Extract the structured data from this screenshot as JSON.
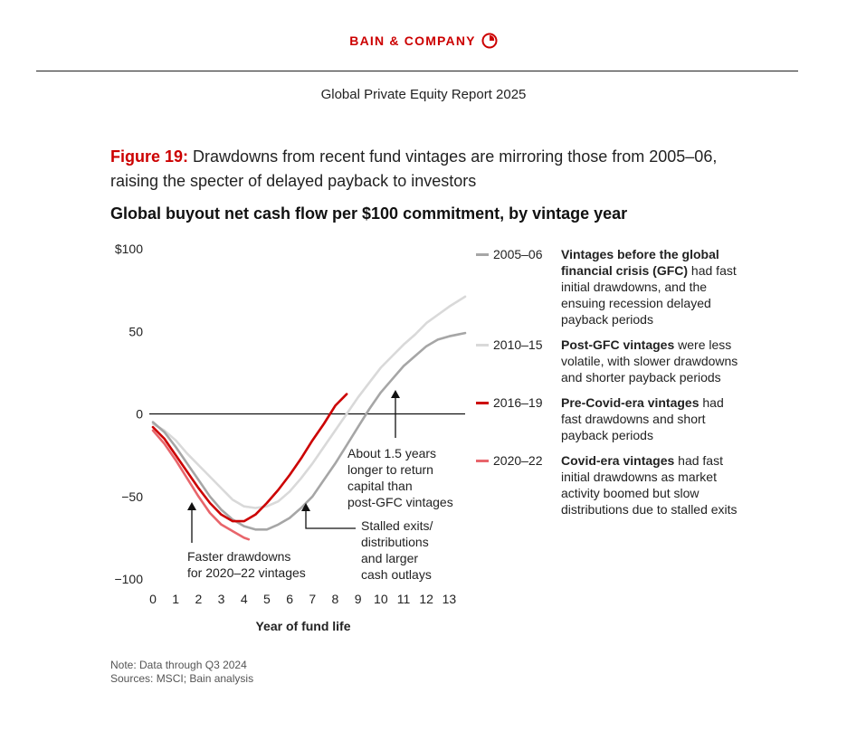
{
  "header": {
    "brand": "BAIN & COMPANY",
    "report": "Global Private Equity Report 2025"
  },
  "figure": {
    "label": "Figure 19:",
    "caption": "Drawdowns from recent fund vintages are mirroring those from 2005–06, raising the specter of delayed payback to investors"
  },
  "notes": {
    "note": "Note: Data through Q3 2024",
    "sources": "Sources: MSCI; Bain analysis"
  },
  "colors": {
    "brand": "#cc0000",
    "v2005": "#a6a6a6",
    "v2010": "#d9d9d9",
    "v2016": "#cc0000",
    "v2020": "#e8656b"
  },
  "chart_data": {
    "type": "line",
    "title": "Global buyout net cash flow per $100 commitment, by vintage year",
    "xlabel": "Year of fund life",
    "ylabel": "",
    "xlim": [
      0,
      13.7
    ],
    "ylim": [
      -100,
      100
    ],
    "xticks": [
      {
        "v": 0,
        "label": "0"
      },
      {
        "v": 1,
        "label": "1"
      },
      {
        "v": 2,
        "label": "2"
      },
      {
        "v": 3,
        "label": "3"
      },
      {
        "v": 4,
        "label": "4"
      },
      {
        "v": 5,
        "label": "5"
      },
      {
        "v": 6,
        "label": "6"
      },
      {
        "v": 7,
        "label": "7"
      },
      {
        "v": 8,
        "label": "8"
      },
      {
        "v": 9,
        "label": "9"
      },
      {
        "v": 10,
        "label": "10"
      },
      {
        "v": 11,
        "label": "11"
      },
      {
        "v": 12,
        "label": "12"
      },
      {
        "v": 13,
        "label": "13"
      }
    ],
    "yticks": [
      {
        "v": 100,
        "label": "$100"
      },
      {
        "v": 50,
        "label": "50"
      },
      {
        "v": 0,
        "label": "0"
      },
      {
        "v": -50,
        "label": "−50"
      },
      {
        "v": -100,
        "label": "−100"
      }
    ],
    "series": [
      {
        "key": "v2010",
        "name": "2010–15",
        "description_bold": "Post-GFC vintages",
        "description": " were less volatile, with slower drawdowns and shorter payback periods",
        "points": [
          [
            0,
            -6
          ],
          [
            0.5,
            -10
          ],
          [
            1,
            -16
          ],
          [
            1.5,
            -24
          ],
          [
            2,
            -31
          ],
          [
            2.5,
            -38
          ],
          [
            3,
            -45
          ],
          [
            3.5,
            -52
          ],
          [
            4,
            -56
          ],
          [
            4.5,
            -57
          ],
          [
            5,
            -56
          ],
          [
            5.5,
            -53
          ],
          [
            6,
            -47
          ],
          [
            6.5,
            -39
          ],
          [
            7,
            -30
          ],
          [
            7.5,
            -20
          ],
          [
            8,
            -10
          ],
          [
            8.5,
            0
          ],
          [
            9,
            10
          ],
          [
            9.5,
            19
          ],
          [
            10,
            28
          ],
          [
            10.5,
            35
          ],
          [
            11,
            42
          ],
          [
            11.5,
            48
          ],
          [
            12,
            55
          ],
          [
            12.5,
            60
          ],
          [
            13,
            65
          ],
          [
            13.7,
            71
          ]
        ]
      },
      {
        "key": "v2005",
        "name": "2005–06",
        "description_bold": "Vintages before the global financial crisis (GFC)",
        "description": " had fast initial drawdowns, and the ensuing recession delayed payback periods",
        "points": [
          [
            0,
            -5
          ],
          [
            0.5,
            -11
          ],
          [
            1,
            -20
          ],
          [
            1.5,
            -30
          ],
          [
            2,
            -40
          ],
          [
            2.5,
            -50
          ],
          [
            3,
            -58
          ],
          [
            3.5,
            -64
          ],
          [
            4,
            -68
          ],
          [
            4.5,
            -70
          ],
          [
            5,
            -70
          ],
          [
            5.5,
            -67
          ],
          [
            6,
            -63
          ],
          [
            6.5,
            -57
          ],
          [
            7,
            -50
          ],
          [
            7.5,
            -40
          ],
          [
            8,
            -30
          ],
          [
            8.5,
            -19
          ],
          [
            9,
            -8
          ],
          [
            9.5,
            3
          ],
          [
            10,
            13
          ],
          [
            10.5,
            21
          ],
          [
            11,
            29
          ],
          [
            11.5,
            35
          ],
          [
            12,
            41
          ],
          [
            12.5,
            45
          ],
          [
            13,
            47
          ],
          [
            13.7,
            49
          ]
        ]
      },
      {
        "key": "v2016",
        "name": "2016–19",
        "description_bold": "Pre-Covid-era vintages",
        "description": " had fast drawdowns and short payback periods",
        "points": [
          [
            0,
            -8
          ],
          [
            0.5,
            -15
          ],
          [
            1,
            -25
          ],
          [
            1.5,
            -35
          ],
          [
            2,
            -45
          ],
          [
            2.5,
            -54
          ],
          [
            3,
            -61
          ],
          [
            3.5,
            -65
          ],
          [
            4,
            -65
          ],
          [
            4.5,
            -61
          ],
          [
            5,
            -54
          ],
          [
            5.5,
            -46
          ],
          [
            6,
            -37
          ],
          [
            6.5,
            -27
          ],
          [
            7,
            -16
          ],
          [
            7.5,
            -6
          ],
          [
            8,
            5
          ],
          [
            8.5,
            12
          ]
        ]
      },
      {
        "key": "v2020",
        "name": "2020–22",
        "description_bold": "Covid-era vintages",
        "description": " had fast initial drawdowns as market activity boomed but slow distributions due to stalled exits",
        "points": [
          [
            0,
            -10
          ],
          [
            0.5,
            -18
          ],
          [
            1,
            -28
          ],
          [
            1.5,
            -39
          ],
          [
            2,
            -50
          ],
          [
            2.5,
            -60
          ],
          [
            3,
            -67
          ],
          [
            3.5,
            -71
          ],
          [
            4,
            -75
          ],
          [
            4.2,
            -76
          ]
        ]
      }
    ],
    "annotations": [
      {
        "text": [
          "Faster drawdowns",
          "for 2020–22 vintages"
        ]
      },
      {
        "text": [
          "Stalled exits/",
          "distributions",
          "and larger",
          "cash outlays"
        ]
      },
      {
        "text": [
          "About 1.5 years",
          "longer to return",
          "capital than",
          "post-GFC vintages"
        ]
      }
    ]
  }
}
